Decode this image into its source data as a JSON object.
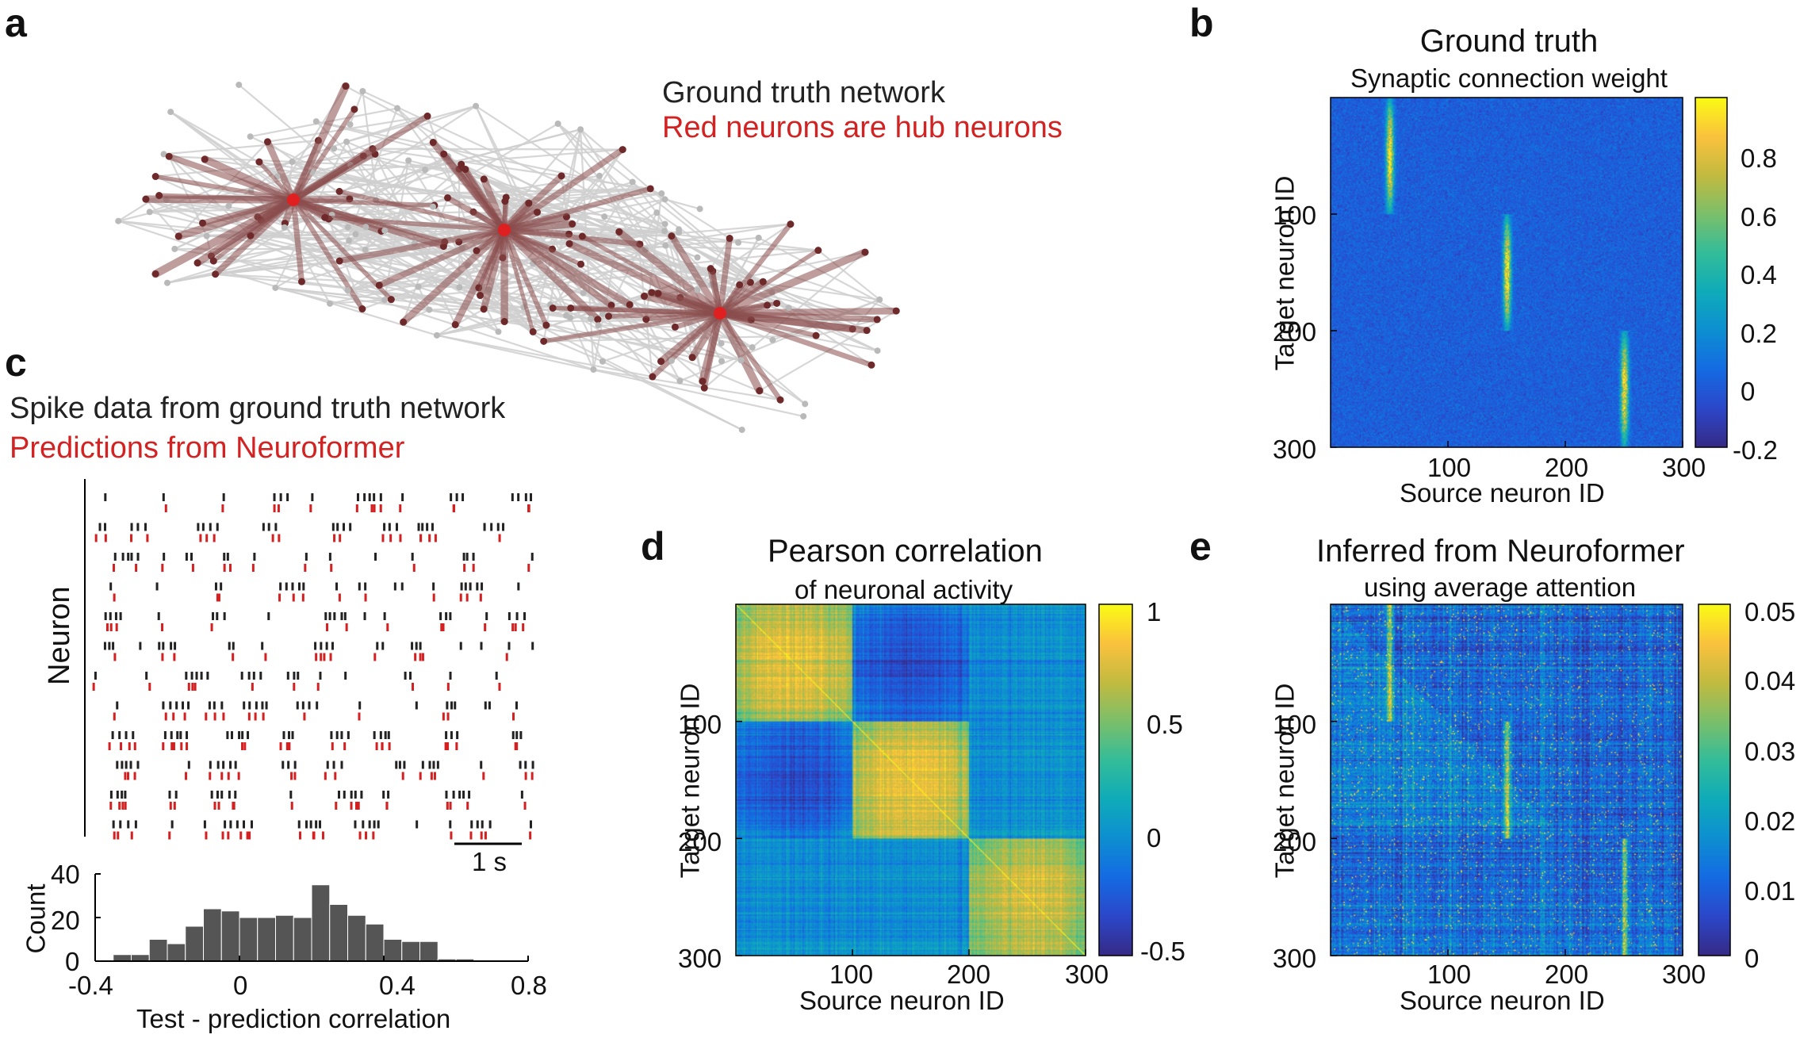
{
  "panel_letters": {
    "a": "a",
    "b": "b",
    "c": "c",
    "d": "d",
    "e": "e"
  },
  "panel_a": {
    "title_line1": "Ground truth network",
    "title_line2": "Red neurons are hub neurons",
    "node_color": "#b9b9b9",
    "edge_color": "#cfcfcf",
    "hub_edge_color": "#8b4c4c",
    "hub_color": "#e02020"
  },
  "panel_c": {
    "title_line1": "Spike data from ground truth network",
    "title_line2": "Predictions from Neuroformer",
    "ylabel": "Neuron",
    "scalebar_label": "1 s",
    "spike_true_color": "#222222",
    "spike_pred_color": "#d42020"
  },
  "chart_data": [
    {
      "panel": "b",
      "type": "heatmap",
      "title": "Ground truth",
      "subtitle": "Synaptic connection weight",
      "xlabel": "Source neuron ID",
      "ylabel": "Target neuron ID",
      "xticks": [
        "100",
        "200",
        "300"
      ],
      "yticks": [
        "100",
        "200",
        "300"
      ],
      "xlim": [
        0,
        300
      ],
      "ylim": [
        0,
        300
      ],
      "colorbar_ticks": [
        "0.8",
        "0.6",
        "0.4",
        "0.2",
        "0",
        "-0.2"
      ],
      "colorbar_range": [
        -0.2,
        1.0
      ],
      "colormap": "parula",
      "structure": "three hub source columns near source neuron IDs 50, 150 and 250 with strong weights to target neurons 0-100, 100-200 and 200-300 respectively"
    },
    {
      "panel": "d",
      "type": "heatmap",
      "title": "Pearson correlation",
      "subtitle": "of neuronal activity",
      "xlabel": "Source neuron ID",
      "ylabel": "Target neuron ID",
      "xticks": [
        "100",
        "200",
        "300"
      ],
      "yticks": [
        "100",
        "200",
        "300"
      ],
      "xlim": [
        0,
        300
      ],
      "ylim": [
        0,
        300
      ],
      "colorbar_ticks": [
        "1",
        "0.5",
        "0",
        "-0.5"
      ],
      "colorbar_range": [
        -0.5,
        1.0
      ],
      "colormap": "parula",
      "structure": "three diagonal blocks (0-100, 100-200, 200-300) of high correlation, negative correlation between blocks 1 and 2, diagonal equals 1"
    },
    {
      "panel": "e",
      "type": "heatmap",
      "title": "Inferred from Neuroformer",
      "subtitle": "using average attention",
      "xlabel": "Source neuron ID",
      "ylabel": "Target neuron ID",
      "xticks": [
        "100",
        "200",
        "300"
      ],
      "yticks": [
        "100",
        "200",
        "300"
      ],
      "xlim": [
        0,
        300
      ],
      "ylim": [
        0,
        300
      ],
      "colorbar_ticks": [
        "0.05",
        "0.04",
        "0.03",
        "0.02",
        "0.01",
        "0"
      ],
      "colorbar_range": [
        0,
        0.05
      ],
      "colormap": "parula",
      "structure": "noisy attention map with bright columns near source neuron IDs 50, 150 and 250 matching ground truth hubs"
    },
    {
      "panel": "c-histogram",
      "type": "bar",
      "xlabel": "Test - prediction correlation",
      "ylabel": "Count",
      "xticks": [
        "-0.4",
        "0",
        "0.4",
        "0.8"
      ],
      "yticks": [
        "0",
        "20",
        "40"
      ],
      "xlim": [
        -0.4,
        0.8
      ],
      "ylim": [
        0,
        40
      ],
      "bin_width": 0.05,
      "bin_starts": [
        -0.35,
        -0.3,
        -0.25,
        -0.2,
        -0.15,
        -0.1,
        -0.05,
        0.0,
        0.05,
        0.1,
        0.15,
        0.2,
        0.25,
        0.3,
        0.35,
        0.4,
        0.45,
        0.5,
        0.55,
        0.6,
        0.65
      ],
      "values": [
        3,
        3,
        10,
        8,
        16,
        24,
        23,
        20,
        20,
        21,
        20,
        35,
        26,
        21,
        17,
        10,
        9,
        9,
        1,
        1,
        0
      ],
      "bar_color": "#555555"
    }
  ]
}
